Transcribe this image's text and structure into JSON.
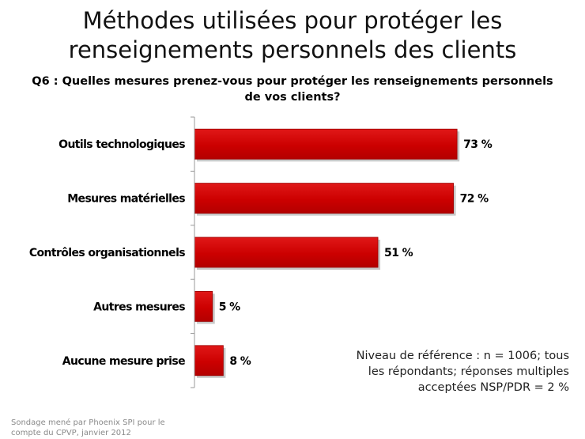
{
  "title": "Méthodes utilisées pour protéger les renseignements personnels des clients",
  "subtitle": "Q6 : Quelles mesures prenez-vous pour protéger les renseignements personnels de vos clients?",
  "note": "Niveau de référence : n = 1006; tous les répondants; réponses multiples acceptées NSP/PDR = 2 %",
  "source": "Sondage mené par Phoenix SPI pour le compte du CPVP, janvier 2012",
  "colors": {
    "bar": "#cc0000",
    "bar_edge": "#990000",
    "axis": "#999999"
  },
  "chart_data": {
    "type": "bar",
    "orientation": "horizontal",
    "categories": [
      "Outils technologiques",
      "Mesures matérielles",
      "Contrôles organisationnels",
      "Autres mesures",
      "Aucune mesure prise"
    ],
    "values": [
      73,
      72,
      51,
      5,
      8
    ],
    "value_labels": [
      "73 %",
      "72 %",
      "51 %",
      "5 %",
      "8 %"
    ],
    "xlim": [
      0,
      100
    ],
    "unit": "%",
    "grid": false,
    "legend": "none"
  }
}
